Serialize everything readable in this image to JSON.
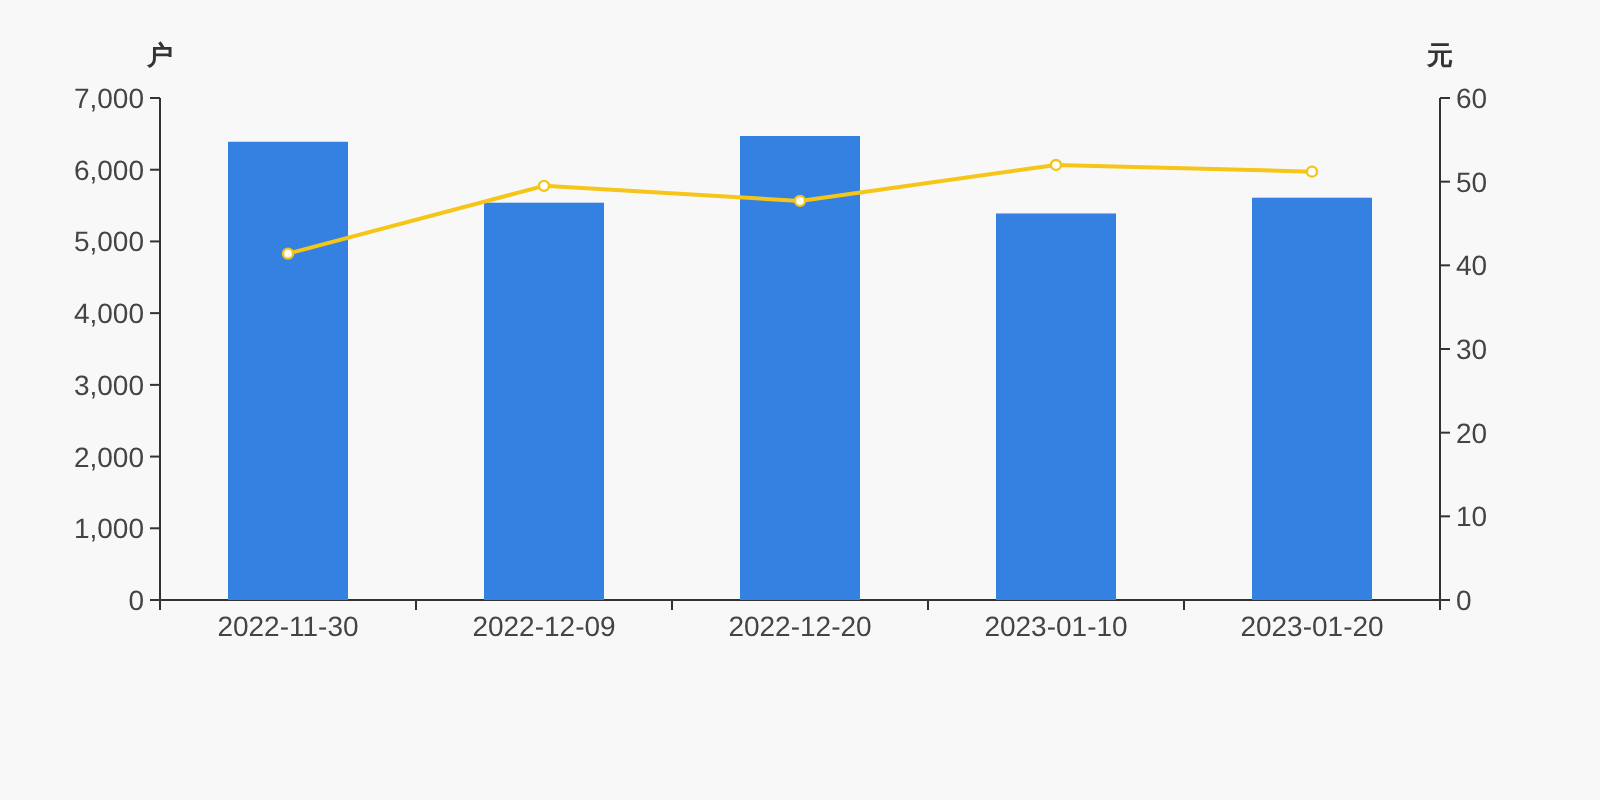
{
  "chart_data": {
    "type": "bar",
    "categories": [
      "2022-11-30",
      "2022-12-09",
      "2022-12-20",
      "2023-01-10",
      "2023-01-20"
    ],
    "ylabel": "户",
    "y2label": "元",
    "series": [
      {
        "color": "#3481e1",
        "values": [
          6390,
          5540,
          6470,
          5390,
          5610
        ]
      },
      {
        "type": "line",
        "axis": "y2",
        "color": "#f5c518",
        "marker": "circle",
        "values": [
          41.4,
          49.5,
          47.7,
          52.0,
          51.2
        ]
      }
    ],
    "ylim": [
      0,
      7000
    ],
    "yticks": [
      {
        "value": 0,
        "label": "0"
      },
      {
        "value": 1000,
        "label": "1,000"
      },
      {
        "value": 2000,
        "label": "2,000"
      },
      {
        "value": 3000,
        "label": "3,000"
      },
      {
        "value": 4000,
        "label": "4,000"
      },
      {
        "value": 5000,
        "label": "5,000"
      },
      {
        "value": 6000,
        "label": "6,000"
      },
      {
        "value": 7000,
        "label": "7,000"
      }
    ],
    "y2lim": [
      0,
      60
    ],
    "y2ticks": [
      0,
      10,
      20,
      30,
      40,
      50,
      60
    ],
    "grid": false
  }
}
